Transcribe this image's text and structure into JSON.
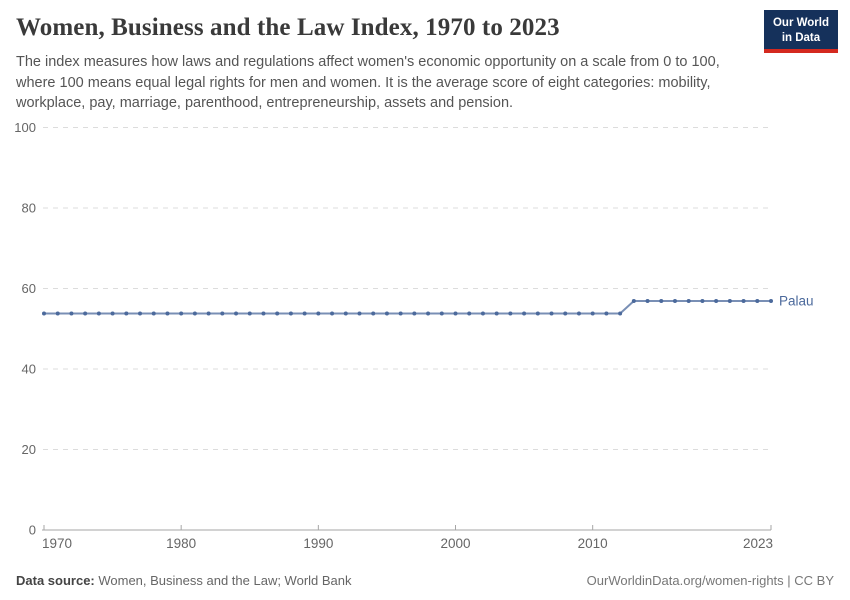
{
  "header": {
    "title": "Women, Business and the Law Index, 1970 to 2023",
    "subtitle_lines": [
      "The index measures how laws and regulations affect women's economic opportunity on a scale from 0 to 100,",
      "where 100 means equal legal rights for men and women. It is the average score of eight categories: mobility,",
      "workplace, pay, marriage, parenthood, entrepreneurship, assets and pension."
    ]
  },
  "logo": {
    "line1": "Our World",
    "line2": "in Data",
    "bg_color": "#15315b",
    "accent_color": "#d4291f"
  },
  "footer": {
    "data_source_label": "Data source:",
    "data_source_value": " Women, Business and the Law; World Bank",
    "url": "OurWorldinData.org/women-rights",
    "divider": " | ",
    "license": "CC BY"
  },
  "chart_data": {
    "type": "line",
    "title": "Women, Business and the Law Index, 1970 to 2023",
    "xlabel": "",
    "ylabel": "",
    "ylim": [
      0,
      100
    ],
    "yticks": [
      0,
      20,
      40,
      60,
      80,
      100
    ],
    "xticks": [
      1970,
      1980,
      1990,
      2000,
      2010,
      2023
    ],
    "grid": true,
    "legend_position": "end-of-line",
    "x": [
      1970,
      1971,
      1972,
      1973,
      1974,
      1975,
      1976,
      1977,
      1978,
      1979,
      1980,
      1981,
      1982,
      1983,
      1984,
      1985,
      1986,
      1987,
      1988,
      1989,
      1990,
      1991,
      1992,
      1993,
      1994,
      1995,
      1996,
      1997,
      1998,
      1999,
      2000,
      2001,
      2002,
      2003,
      2004,
      2005,
      2006,
      2007,
      2008,
      2009,
      2010,
      2011,
      2012,
      2013,
      2014,
      2015,
      2016,
      2017,
      2018,
      2019,
      2020,
      2021,
      2022,
      2023
    ],
    "series": [
      {
        "name": "Palau",
        "color": "#4c6a9c",
        "values": [
          53.8,
          53.8,
          53.8,
          53.8,
          53.8,
          53.8,
          53.8,
          53.8,
          53.8,
          53.8,
          53.8,
          53.8,
          53.8,
          53.8,
          53.8,
          53.8,
          53.8,
          53.8,
          53.8,
          53.8,
          53.8,
          53.8,
          53.8,
          53.8,
          53.8,
          53.8,
          53.8,
          53.8,
          53.8,
          53.8,
          53.8,
          53.8,
          53.8,
          53.8,
          53.8,
          53.8,
          53.8,
          53.8,
          53.8,
          53.8,
          53.8,
          53.8,
          53.8,
          56.9,
          56.9,
          56.9,
          56.9,
          56.9,
          56.9,
          56.9,
          56.9,
          56.9,
          56.9,
          56.9
        ]
      }
    ],
    "style": {
      "grid_color": "#dcdcdc",
      "axis_color": "#a6a6a6",
      "tick_label_color": "#666666"
    }
  }
}
